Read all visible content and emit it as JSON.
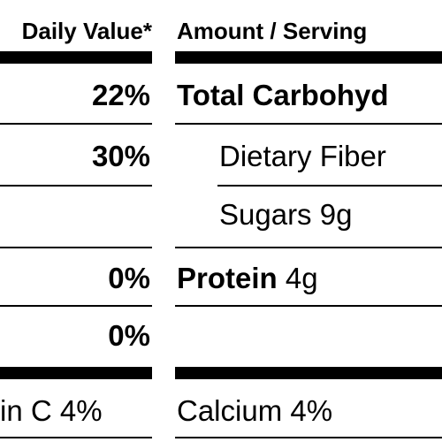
{
  "header": {
    "daily_value": "Daily Value*",
    "amount": "Amount / Serving"
  },
  "rows": [
    {
      "percent": "22%",
      "nutrient": "Total Carbohyd"
    },
    {
      "percent": "30%",
      "nutrient": "Dietary Fiber"
    },
    {
      "nutrient": "Sugars 9g"
    },
    {
      "percent": "0%",
      "nutrient": "Protein",
      "amount": "4g"
    },
    {
      "percent": "0%"
    }
  ],
  "footer": {
    "vitamin": "in C 4%",
    "mineral": "Calcium 4%"
  }
}
